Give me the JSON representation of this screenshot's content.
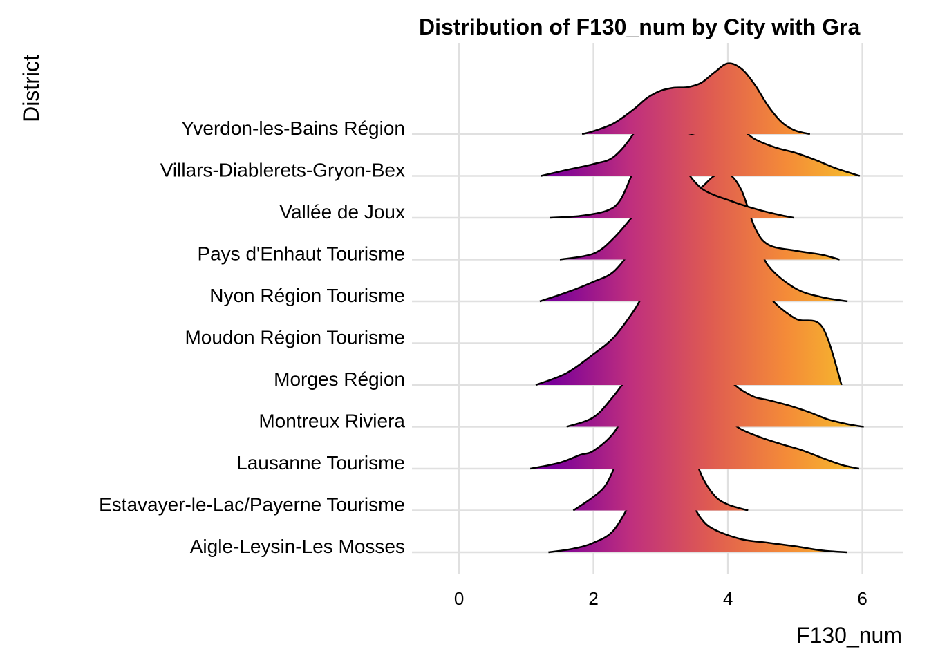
{
  "chart_data": {
    "type": "ridgeline",
    "title": "Distribution of F130_num by City with Gra",
    "xlabel": "F130_num",
    "ylabel": "District",
    "xlim": [
      -0.7,
      6.6
    ],
    "x_ticks": [
      0,
      2,
      4,
      6
    ],
    "grid": true,
    "legend": "none",
    "fill_gradient": [
      "#7a0099",
      "#bf2f7e",
      "#de5a52",
      "#f48b38",
      "#f6c22b"
    ],
    "categories": [
      "Yverdon-les-Bains Région",
      "Villars-Diablerets-Gryon-Bex",
      "Vallée de Joux",
      "Pays d'Enhaut Tourisme",
      "Nyon Région Tourisme",
      "Moudon Région Tourisme",
      "Morges Région",
      "Montreux Riviera",
      "Lausanne Tourisme",
      "Estavayer-le-Lac/Payerne Tourisme",
      "Aigle-Leysin-Les Mosses"
    ],
    "series": [
      {
        "x": [
          1.83,
          2.0,
          2.3,
          2.6,
          2.8,
          3.0,
          3.2,
          3.4,
          3.6,
          3.8,
          4.0,
          4.2,
          4.4,
          4.6,
          4.8,
          5.0,
          5.22
        ],
        "y": [
          0.0,
          0.05,
          0.18,
          0.42,
          0.61,
          0.73,
          0.78,
          0.79,
          0.86,
          1.04,
          1.19,
          1.1,
          0.83,
          0.47,
          0.2,
          0.06,
          0.0
        ]
      },
      {
        "x": [
          1.22,
          1.6,
          2.0,
          2.3,
          2.6,
          2.8,
          3.0,
          3.2,
          3.4,
          3.6,
          3.8,
          4.0,
          4.2,
          4.4,
          4.7,
          5.0,
          5.3,
          5.6,
          5.96
        ],
        "y": [
          0.0,
          0.1,
          0.2,
          0.32,
          0.72,
          1.22,
          1.4,
          1.12,
          0.73,
          0.76,
          0.84,
          0.89,
          0.79,
          0.62,
          0.48,
          0.39,
          0.27,
          0.13,
          0.0
        ]
      },
      {
        "x": [
          1.35,
          1.8,
          2.2,
          2.4,
          2.6,
          2.8,
          3.0,
          3.2,
          3.4,
          3.6,
          3.8,
          4.0,
          4.2,
          4.5,
          4.8,
          4.98
        ],
        "y": [
          0.0,
          0.03,
          0.12,
          0.3,
          0.8,
          1.28,
          1.4,
          1.18,
          0.76,
          0.5,
          0.38,
          0.3,
          0.22,
          0.12,
          0.04,
          0.0
        ]
      },
      {
        "x": [
          1.5,
          2.0,
          2.3,
          2.6,
          2.8,
          3.0,
          3.2,
          3.4,
          3.6,
          3.8,
          4.0,
          4.2,
          4.4,
          4.6,
          5.0,
          5.4,
          5.66
        ],
        "y": [
          0.0,
          0.1,
          0.36,
          0.75,
          1.03,
          1.18,
          1.18,
          1.09,
          1.21,
          1.41,
          1.45,
          1.17,
          0.54,
          0.25,
          0.15,
          0.08,
          0.0
        ]
      },
      {
        "x": [
          1.2,
          1.6,
          2.0,
          2.3,
          2.6,
          2.8,
          3.0,
          3.2,
          3.4,
          3.6,
          3.8,
          4.0,
          4.2,
          4.4,
          4.6,
          5.0,
          5.4,
          5.78
        ],
        "y": [
          0.0,
          0.15,
          0.33,
          0.5,
          0.92,
          1.28,
          1.45,
          1.52,
          1.52,
          1.6,
          1.88,
          1.9,
          1.6,
          1.11,
          0.6,
          0.22,
          0.07,
          0.0
        ]
      },
      {
        "x": [
          1.0,
          1.5,
          2.0,
          2.4,
          2.7,
          3.0,
          3.3,
          3.6,
          3.9,
          4.2,
          4.6,
          5.0,
          5.5
        ],
        "y": [
          0.0,
          0.0,
          0.0,
          0.0,
          0.0,
          0.0,
          0.0,
          0.0,
          0.0,
          0.0,
          0.0,
          0.0,
          0.0
        ]
      },
      {
        "x": [
          1.14,
          1.6,
          2.0,
          2.3,
          2.6,
          2.8,
          3.0,
          3.2,
          3.4,
          3.6,
          3.8,
          4.0,
          4.2,
          4.4,
          4.6,
          5.0,
          5.4,
          5.69
        ],
        "y": [
          0.0,
          0.2,
          0.52,
          0.8,
          1.25,
          1.63,
          1.87,
          1.96,
          2.16,
          2.58,
          2.85,
          2.94,
          2.68,
          2.06,
          1.51,
          1.12,
          0.98,
          0.0
        ]
      },
      {
        "x": [
          1.6,
          2.0,
          2.3,
          2.6,
          2.8,
          3.0,
          3.2,
          3.4,
          3.6,
          3.8,
          4.0,
          4.2,
          4.4,
          4.6,
          4.9,
          5.2,
          5.5,
          5.8,
          6.02
        ],
        "y": [
          0.0,
          0.16,
          0.52,
          0.97,
          1.19,
          1.48,
          1.34,
          0.93,
          0.75,
          0.79,
          0.78,
          0.62,
          0.5,
          0.45,
          0.36,
          0.25,
          0.12,
          0.04,
          0.0
        ]
      },
      {
        "x": [
          1.06,
          1.5,
          1.8,
          2.0,
          2.3,
          2.6,
          2.8,
          3.0,
          3.2,
          3.4,
          3.6,
          3.8,
          4.0,
          4.2,
          4.5,
          4.8,
          5.1,
          5.4,
          5.7,
          5.95
        ],
        "y": [
          0.0,
          0.1,
          0.23,
          0.3,
          0.6,
          1.17,
          1.36,
          1.55,
          1.33,
          0.94,
          0.81,
          0.82,
          0.8,
          0.66,
          0.52,
          0.41,
          0.31,
          0.18,
          0.06,
          0.0
        ]
      },
      {
        "x": [
          1.7,
          2.0,
          2.2,
          2.4,
          2.6,
          2.8,
          2.9,
          3.0,
          3.1,
          3.2,
          3.4,
          3.6,
          3.8,
          4.0,
          4.3
        ],
        "y": [
          0.0,
          0.23,
          0.46,
          0.97,
          1.6,
          2.35,
          2.49,
          2.58,
          2.52,
          2.24,
          1.3,
          0.61,
          0.25,
          0.1,
          0.0
        ]
      },
      {
        "x": [
          1.33,
          1.7,
          2.0,
          2.3,
          2.6,
          2.8,
          3.0,
          3.2,
          3.4,
          3.6,
          3.8,
          4.2,
          4.6,
          5.0,
          5.4,
          5.77
        ],
        "y": [
          0.0,
          0.06,
          0.16,
          0.37,
          0.93,
          1.28,
          1.42,
          1.32,
          0.96,
          0.57,
          0.38,
          0.22,
          0.16,
          0.1,
          0.03,
          0.0
        ]
      }
    ]
  }
}
